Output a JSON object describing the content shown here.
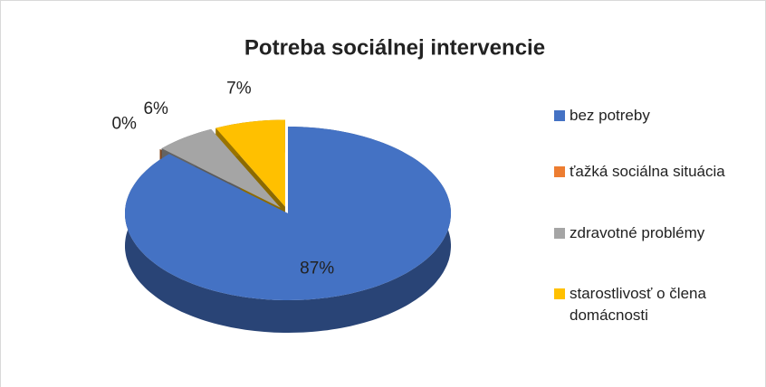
{
  "chart_data": {
    "type": "pie3d",
    "title": "Potreba sociálnej intervencie",
    "categories": [
      "bez potreby",
      "ťažká sociálna situácia",
      "zdravotné problémy",
      "starostlivosť o člena domácnosti"
    ],
    "values": [
      87,
      0,
      6,
      7
    ],
    "value_labels": [
      "87%",
      "0%",
      "6%",
      "7%"
    ],
    "colors": [
      "#4472c4",
      "#ed7d31",
      "#a5a5a5",
      "#ffc000"
    ],
    "legend": "right"
  }
}
